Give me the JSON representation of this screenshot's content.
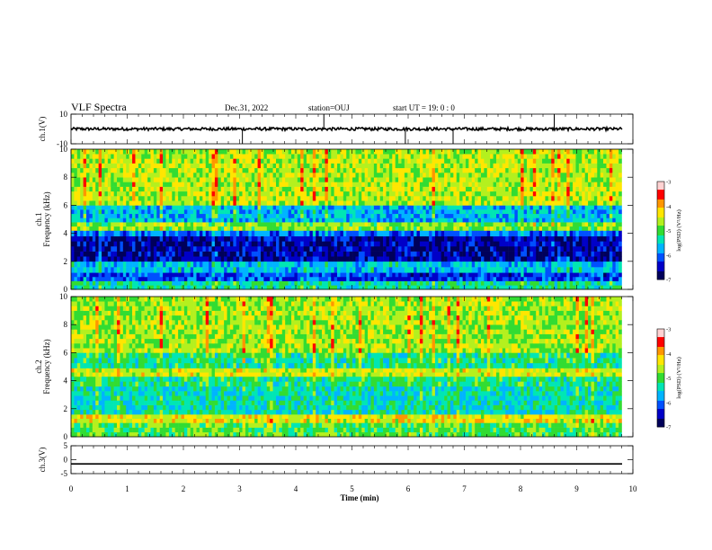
{
  "header": {
    "title": "VLF Spectra",
    "date": "Dec.31, 2022",
    "station": "station=OUJ",
    "start": "start  UT =   19: 0  : 0"
  },
  "colors": {
    "axis": "#000000",
    "background": "#ffffff",
    "trace": "#000000",
    "colormap": [
      "#00005a",
      "#0000c8",
      "#0050ff",
      "#00b4ff",
      "#00e6b4",
      "#32dc32",
      "#b4f01e",
      "#ffe600",
      "#ff9600",
      "#ff0000",
      "#ffd2d2"
    ]
  },
  "chart_data": [
    {
      "id": "ch1-waveform",
      "type": "line",
      "ylabel": "ch.1(V)",
      "ylim": [
        -10,
        10
      ],
      "yticks": [
        "10",
        "-10"
      ],
      "xlim": [
        0,
        10
      ],
      "baseline": 0,
      "amplitude": 1,
      "spikes": [
        [
          3.05,
          -10
        ],
        [
          4.5,
          10
        ],
        [
          5.95,
          -10
        ],
        [
          6.8,
          -10
        ],
        [
          8.6,
          10
        ]
      ]
    },
    {
      "id": "ch1-spectrogram",
      "type": "heatmap",
      "ylabel": "ch.1\nFrequency  (kHz)",
      "ylim": [
        0,
        10
      ],
      "yticks": [
        "0",
        "2",
        "4",
        "6",
        "8",
        "10"
      ],
      "xlim": [
        0,
        9.8
      ],
      "colorbar": {
        "label": "log(PSD) (V²/Hz)",
        "range": [
          -7,
          -3
        ],
        "ticks": [
          "-3",
          "-4",
          "-5",
          "-6",
          "-7"
        ]
      },
      "bands": [
        {
          "f_low": 0,
          "f_high": 0.6,
          "value": -5.3
        },
        {
          "f_low": 0.6,
          "f_high": 1.2,
          "value": -6.2
        },
        {
          "f_low": 1.2,
          "f_high": 2.0,
          "value": -5.6
        },
        {
          "f_low": 2.0,
          "f_high": 3.8,
          "value": -6.6
        },
        {
          "f_low": 3.8,
          "f_high": 4.2,
          "value": -6.0
        },
        {
          "f_low": 4.2,
          "f_high": 4.8,
          "value": -4.8
        },
        {
          "f_low": 4.8,
          "f_high": 6.0,
          "value": -5.7
        },
        {
          "f_low": 6.0,
          "f_high": 10,
          "value": -4.6
        }
      ]
    },
    {
      "id": "ch2-spectrogram",
      "type": "heatmap",
      "ylabel": "ch.2\nFrequency  (kHz)",
      "ylim": [
        0,
        10
      ],
      "yticks": [
        "0",
        "2",
        "4",
        "6",
        "8",
        "10"
      ],
      "xlim": [
        0,
        9.8
      ],
      "colorbar": {
        "label": "log(PSD) (V²/Hz)",
        "range": [
          -7,
          -3
        ],
        "ticks": [
          "-3",
          "-4",
          "-5",
          "-6",
          "-7"
        ]
      },
      "bands": [
        {
          "f_low": 0,
          "f_high": 1.0,
          "value": -5.0
        },
        {
          "f_low": 1.0,
          "f_high": 1.6,
          "value": -4.4
        },
        {
          "f_low": 1.6,
          "f_high": 3.6,
          "value": -5.4
        },
        {
          "f_low": 3.6,
          "f_high": 4.3,
          "value": -5.2
        },
        {
          "f_low": 4.3,
          "f_high": 4.9,
          "value": -4.5
        },
        {
          "f_low": 4.9,
          "f_high": 6.0,
          "value": -5.2
        },
        {
          "f_low": 6.0,
          "f_high": 10,
          "value": -4.7
        }
      ]
    },
    {
      "id": "ch3-waveform",
      "type": "line",
      "ylabel": "ch.3(V)",
      "ylim": [
        -5,
        5
      ],
      "yticks": [
        "5",
        "0",
        "-5"
      ],
      "xlim": [
        0,
        10
      ],
      "baseline": -1.5,
      "amplitude": 0,
      "spikes": []
    }
  ],
  "x_axis": {
    "label": "Time  (min)",
    "range": [
      0,
      10
    ],
    "ticks": [
      "0",
      "1",
      "2",
      "3",
      "4",
      "5",
      "6",
      "7",
      "8",
      "9",
      "10"
    ]
  }
}
